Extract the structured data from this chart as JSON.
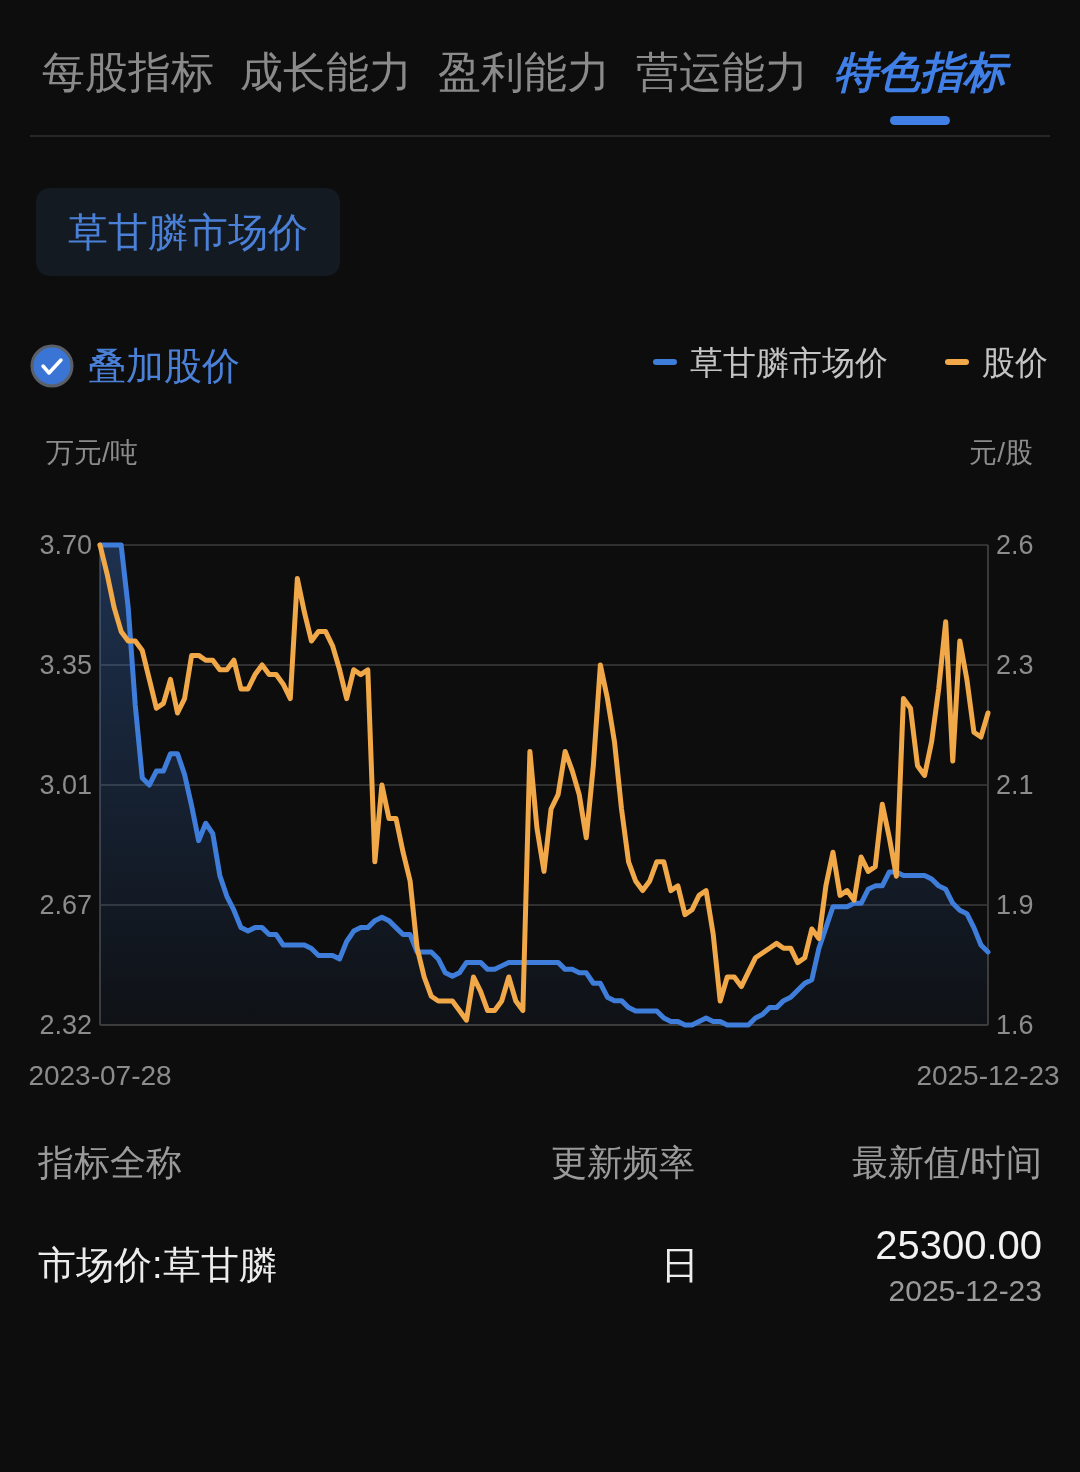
{
  "chart_data": [
    {
      "type": "other",
      "annotations": [
        "每股指标",
        "成长能力",
        "盈利能力",
        "营运能力",
        "特色指标"
      ]
    },
    {
      "type": "line",
      "title": "草甘膦市场价",
      "annotations": [
        "叠加股价"
      ],
      "ylabel": "万元/吨",
      "y2label": "元/股",
      "legend": "top right",
      "grid": "y",
      "categories": [
        "2023-07-28",
        null,
        null,
        null,
        null,
        null,
        null,
        null,
        null,
        null,
        null,
        null,
        null,
        null,
        null,
        null,
        null,
        null,
        null,
        null,
        null,
        null,
        null,
        null,
        null,
        null,
        null,
        null,
        null,
        null,
        null,
        null,
        null,
        null,
        null,
        null,
        null,
        null,
        null,
        null,
        null,
        null,
        null,
        null,
        null,
        null,
        null,
        null,
        null,
        null,
        null,
        null,
        null,
        null,
        null,
        null,
        null,
        null,
        null,
        null,
        null,
        null,
        null,
        null,
        null,
        null,
        null,
        null,
        null,
        null,
        null,
        null,
        null,
        null,
        null,
        null,
        null,
        null,
        null,
        null,
        null,
        null,
        null,
        null,
        null,
        null,
        null,
        null,
        null,
        null,
        null,
        null,
        null,
        null,
        null,
        null,
        null,
        null,
        null,
        null,
        null,
        null,
        null,
        null,
        null,
        null,
        null,
        null,
        null,
        null,
        null,
        null,
        null,
        null,
        null,
        null,
        null,
        null,
        null,
        null,
        null,
        null,
        null,
        null,
        null,
        null,
        "2025-12-23"
      ],
      "ylim": [
        2.32,
        3.7
      ],
      "yticks": [
        2.32,
        {
          "value": 2.665,
          "label": "2.67"
        },
        3.01,
        {
          "value": 3.355,
          "label": "3.35"
        },
        {
          "value": 3.7,
          "label": "3.70"
        }
      ],
      "y2lim": [
        1.6,
        2.6
      ],
      "y2ticks": [
        1.6,
        {
          "value": 1.85,
          "label": "1.9"
        },
        2.1,
        {
          "value": 2.35,
          "label": "2.3"
        },
        2.6
      ],
      "series": [
        {
          "name": "草甘膦市场价",
          "type": "area",
          "color": "#3f7ddb",
          "values": [
            3.7,
            3.7,
            3.7,
            3.7,
            3.52,
            3.24,
            3.03,
            3.01,
            3.05,
            3.05,
            3.1,
            3.1,
            3.04,
            2.95,
            2.85,
            2.9,
            2.87,
            2.75,
            2.69,
            2.65,
            2.6,
            2.59,
            2.6,
            2.6,
            2.58,
            2.58,
            2.55,
            2.55,
            2.55,
            2.55,
            2.54,
            2.52,
            2.52,
            2.52,
            2.51,
            2.56,
            2.59,
            2.6,
            2.6,
            2.62,
            2.63,
            2.62,
            2.6,
            2.58,
            2.58,
            2.53,
            2.53,
            2.53,
            2.51,
            2.47,
            2.46,
            2.47,
            2.5,
            2.5,
            2.5,
            2.48,
            2.48,
            2.49,
            2.5,
            2.5,
            2.5,
            2.5,
            2.5,
            2.5,
            2.5,
            2.5,
            2.48,
            2.48,
            2.47,
            2.47,
            2.44,
            2.44,
            2.4,
            2.39,
            2.39,
            2.37,
            2.36,
            2.36,
            2.36,
            2.36,
            2.34,
            2.33,
            2.33,
            2.32,
            2.32,
            2.33,
            2.34,
            2.33,
            2.33,
            2.32,
            2.32,
            2.32,
            2.32,
            2.34,
            2.35,
            2.37,
            2.37,
            2.39,
            2.4,
            2.42,
            2.44,
            2.45,
            2.54,
            2.6,
            2.66,
            2.66,
            2.66,
            2.67,
            2.67,
            2.71,
            2.72,
            2.72,
            2.76,
            2.76,
            2.75,
            2.75,
            2.75,
            2.75,
            2.74,
            2.72,
            2.71,
            2.67,
            2.65,
            2.64,
            2.6,
            2.55,
            2.53
          ]
        },
        {
          "name": "股价",
          "type": "line",
          "color": "#f0a848",
          "axis": "y2",
          "values": [
            2.6,
            2.54,
            2.47,
            2.42,
            2.4,
            2.4,
            2.38,
            2.32,
            2.26,
            2.27,
            2.32,
            2.25,
            2.28,
            2.37,
            2.37,
            2.36,
            2.36,
            2.34,
            2.34,
            2.36,
            2.3,
            2.3,
            2.33,
            2.35,
            2.33,
            2.33,
            2.31,
            2.28,
            2.53,
            2.46,
            2.4,
            2.42,
            2.42,
            2.39,
            2.34,
            2.28,
            2.34,
            2.33,
            2.34,
            1.94,
            2.1,
            2.03,
            2.03,
            1.96,
            1.9,
            1.76,
            1.7,
            1.66,
            1.65,
            1.65,
            1.65,
            1.63,
            1.61,
            1.7,
            1.67,
            1.63,
            1.63,
            1.65,
            1.7,
            1.65,
            1.63,
            2.17,
            2.01,
            1.92,
            2.05,
            2.08,
            2.17,
            2.13,
            2.08,
            1.99,
            2.14,
            2.35,
            2.28,
            2.19,
            2.05,
            1.94,
            1.9,
            1.88,
            1.9,
            1.94,
            1.94,
            1.88,
            1.89,
            1.83,
            1.84,
            1.87,
            1.88,
            1.79,
            1.65,
            1.7,
            1.7,
            1.68,
            1.71,
            1.74,
            1.75,
            1.76,
            1.77,
            1.76,
            1.76,
            1.73,
            1.74,
            1.8,
            1.78,
            1.89,
            1.96,
            1.87,
            1.88,
            1.86,
            1.95,
            1.92,
            1.93,
            2.06,
            1.99,
            1.91,
            2.28,
            2.26,
            2.14,
            2.12,
            2.19,
            2.3,
            2.44,
            2.15,
            2.4,
            2.32,
            2.21,
            2.2,
            2.25
          ]
        }
      ]
    },
    {
      "type": "other",
      "annotations": [
        "指标全称",
        "更新频率",
        "最新值/时间",
        "市场价:草甘膦",
        "日",
        "25300.00",
        "2025-12-23"
      ]
    }
  ]
}
